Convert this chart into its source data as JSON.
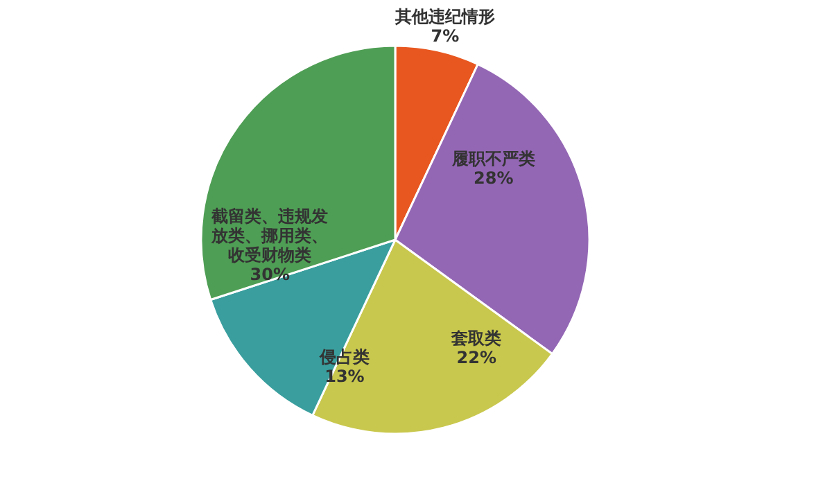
{
  "chart_data": {
    "type": "pie",
    "categories": [
      "其他违纪情形",
      "履职不严类",
      "套取类",
      "侵占类",
      "截留类、违规发放类、挪用类、收受财物类"
    ],
    "values": [
      7,
      28,
      22,
      13,
      30
    ],
    "colors": [
      "#e8571f",
      "#9467b5",
      "#c9c84e",
      "#3a9e9e",
      "#4f9e55"
    ],
    "value_labels": [
      "7%",
      "28%",
      "22%",
      "13%",
      "30%"
    ],
    "legend": false
  }
}
